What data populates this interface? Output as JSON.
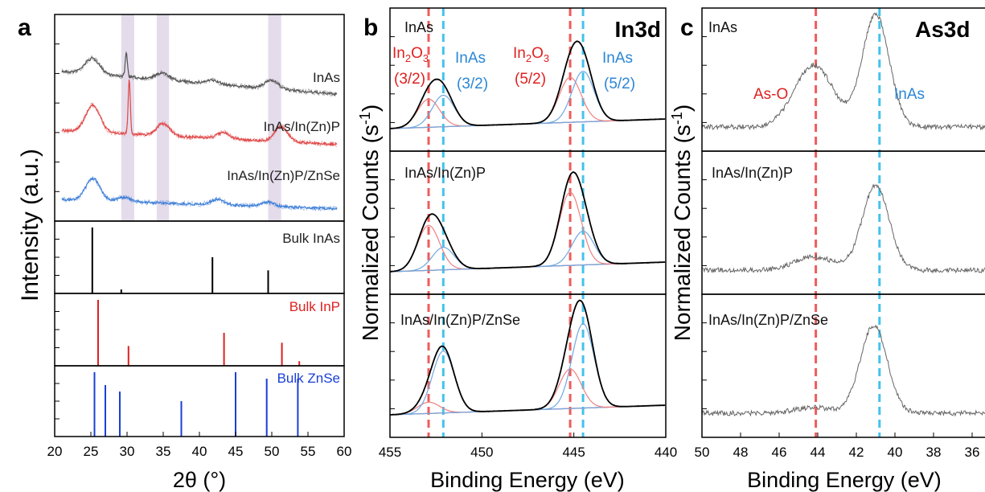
{
  "chart_data": [
    {
      "panel_letter": "a",
      "type": "line",
      "xlabel": "2θ (°)",
      "ylabel": "Intensity (a.u.)",
      "xlim": [
        20,
        60
      ],
      "x_ticks": [
        20,
        25,
        30,
        35,
        40,
        45,
        50,
        55,
        60
      ],
      "highlight_bands": [
        [
          29.2,
          31.0
        ],
        [
          34.1,
          35.8
        ],
        [
          49.5,
          51.3
        ]
      ],
      "series": [
        {
          "name": "InAs",
          "color": "#555555",
          "peaks": [
            [
              25.2,
              0.2
            ],
            [
              29.9,
              0.55
            ],
            [
              34.9,
              0.15
            ],
            [
              41.8,
              0.08
            ],
            [
              50.0,
              0.2
            ]
          ]
        },
        {
          "name": "InAs/In(Zn)P",
          "color": "#e04848",
          "peaks": [
            [
              25.3,
              0.3
            ],
            [
              30.3,
              0.9
            ],
            [
              35.0,
              0.2
            ],
            [
              43.3,
              0.1
            ],
            [
              51.3,
              0.25
            ]
          ]
        },
        {
          "name": "InAs/In(Zn)P/ZnSe",
          "color": "#3f7fd8",
          "peaks": [
            [
              25.3,
              0.35
            ],
            [
              29.5,
              0.1
            ],
            [
              42.5,
              0.12
            ],
            [
              49.5,
              0.1
            ]
          ]
        }
      ],
      "references": [
        {
          "name": "Bulk InAs",
          "color": "#000000",
          "lines": [
            [
              25.2,
              1.0
            ],
            [
              29.2,
              0.06
            ],
            [
              41.8,
              0.55
            ],
            [
              49.5,
              0.35
            ]
          ]
        },
        {
          "name": "Bulk InP",
          "color": "#e02020",
          "lines": [
            [
              26.0,
              1.0
            ],
            [
              30.2,
              0.3
            ],
            [
              43.4,
              0.5
            ],
            [
              51.4,
              0.35
            ],
            [
              53.8,
              0.07
            ]
          ]
        },
        {
          "name": "Bulk ZnSe",
          "color": "#1a3fd6",
          "lines": [
            [
              25.5,
              1.0
            ],
            [
              27.0,
              0.8
            ],
            [
              29.0,
              0.7
            ],
            [
              37.5,
              0.55
            ],
            [
              45.0,
              1.0
            ],
            [
              49.3,
              0.9
            ],
            [
              53.6,
              0.9
            ]
          ]
        }
      ]
    },
    {
      "panel_letter": "b",
      "panel_title": "In3d",
      "type": "line",
      "xlabel": "Binding Energy (eV)",
      "ylabel": "Normalized Counts (s",
      "ylabel_sup": "-1",
      "ylabel_close": ")",
      "xlim": [
        455,
        440
      ],
      "x_ticks": [
        455,
        450,
        445,
        440
      ],
      "dashed_lines": [
        {
          "x": 452.9,
          "color": "#ef5c5c"
        },
        {
          "x": 452.1,
          "color": "#44c2ec"
        },
        {
          "x": 445.2,
          "color": "#ef5c5c"
        },
        {
          "x": 444.5,
          "color": "#44c2ec"
        }
      ],
      "peak_labels": [
        {
          "text": "In",
          "sub": "2",
          "mid": "O",
          "sub2": "3",
          "line2": "(3/2)",
          "color": "#e02020"
        },
        {
          "text": "InAs",
          "line2": "(3/2)",
          "color": "#2a86d6"
        },
        {
          "text": "In",
          "sub": "2",
          "mid": "O",
          "sub2": "3",
          "line2": "(5/2)",
          "color": "#e02020"
        },
        {
          "text": "InAs",
          "line2": "(5/2)",
          "color": "#2a86d6"
        }
      ],
      "subplots": [
        {
          "label": "InAs",
          "envelope_peak": 1.0,
          "components": [
            {
              "x": 452.9,
              "h": 0.25,
              "color": "#ef8080"
            },
            {
              "x": 452.1,
              "h": 0.28,
              "color": "#6fa8e0"
            },
            {
              "x": 445.2,
              "h": 0.4,
              "color": "#ef8080"
            },
            {
              "x": 444.5,
              "h": 0.45,
              "color": "#6fa8e0"
            }
          ]
        },
        {
          "label": "InAs/In(Zn)P",
          "envelope_peak": 1.0,
          "components": [
            {
              "x": 452.9,
              "h": 0.4,
              "color": "#ef8080"
            },
            {
              "x": 452.1,
              "h": 0.2,
              "color": "#6fa8e0"
            },
            {
              "x": 445.2,
              "h": 0.65,
              "color": "#ef8080"
            },
            {
              "x": 444.5,
              "h": 0.3,
              "color": "#6fa8e0"
            }
          ]
        },
        {
          "label": "InAs/In(Zn)P/ZnSe",
          "envelope_peak": 1.0,
          "components": [
            {
              "x": 452.9,
              "h": 0.1,
              "color": "#ef8080"
            },
            {
              "x": 452.1,
              "h": 0.55,
              "color": "#6fa8e0"
            },
            {
              "x": 445.2,
              "h": 0.35,
              "color": "#ef8080"
            },
            {
              "x": 444.5,
              "h": 0.75,
              "color": "#6fa8e0"
            }
          ]
        }
      ]
    },
    {
      "panel_letter": "c",
      "panel_title": "As3d",
      "type": "line",
      "xlabel": "Binding Energy (eV)",
      "ylabel": "Normalized Counts (s",
      "ylabel_sup": "-1",
      "ylabel_close": ")",
      "xlim": [
        50,
        35
      ],
      "x_ticks": [
        50,
        48,
        46,
        44,
        42,
        40,
        38,
        36
      ],
      "dashed_lines": [
        {
          "x": 44.1,
          "color": "#ef5c5c"
        },
        {
          "x": 40.8,
          "color": "#44c2ec"
        }
      ],
      "peak_labels": [
        {
          "text": "As-O",
          "color": "#e02020"
        },
        {
          "text": "InAs",
          "color": "#2a86d6"
        }
      ],
      "subplots": [
        {
          "label": "InAs",
          "peaks": [
            [
              44.2,
              0.55
            ],
            [
              41.0,
              1.0
            ]
          ]
        },
        {
          "label": "InAs/In(Zn)P",
          "peaks": [
            [
              44.2,
              0.12
            ],
            [
              41.0,
              0.75
            ]
          ]
        },
        {
          "label": "InAs/In(Zn)P/ZnSe",
          "peaks": [
            [
              44.2,
              0.05
            ],
            [
              41.1,
              0.78
            ]
          ]
        }
      ]
    }
  ]
}
